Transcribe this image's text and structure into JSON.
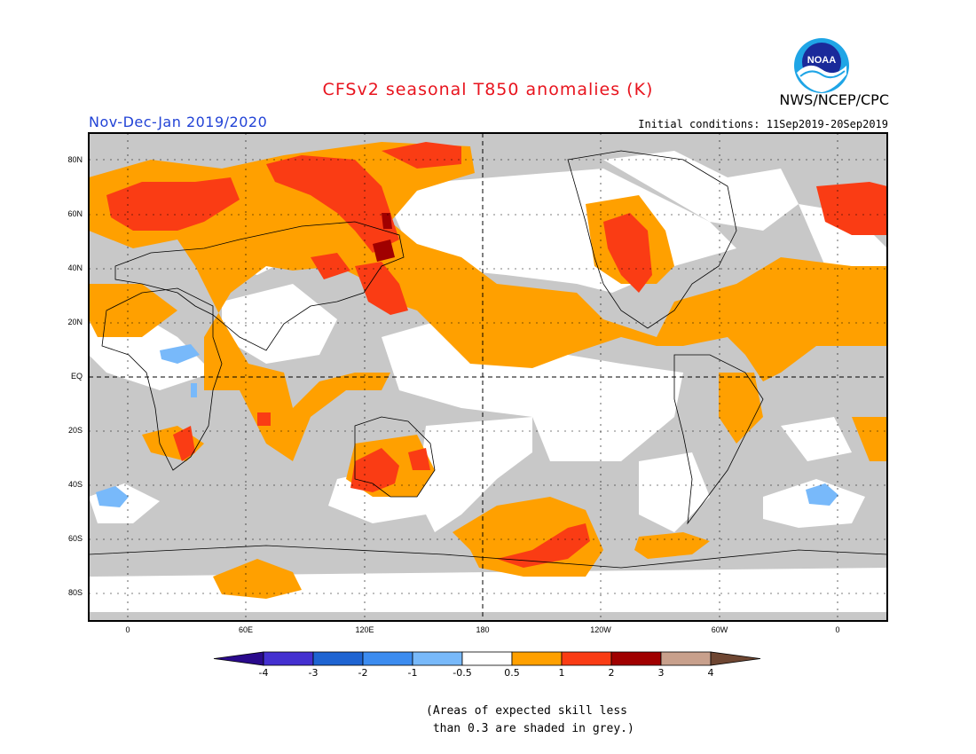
{
  "title": "CFSv2 seasonal T850 anomalies (K)",
  "season": "Nov-Dec-Jan 2019/2020",
  "initial_conditions": "Initial conditions: 11Sep2019-20Sep2019",
  "agency": "NWS/NCEP/CPC",
  "logo_text": "NOAA",
  "colors": {
    "title": "#e8141e",
    "season": "#2243d6",
    "grey": "#c8c8c8",
    "orange": "#ffa000",
    "red_orange": "#fa3c14",
    "dark_red": "#a00000",
    "light_blue": "#78b9fa"
  },
  "latitude_labels": [
    "80N",
    "60N",
    "40N",
    "20N",
    "EQ",
    "20S",
    "40S",
    "60S",
    "80S"
  ],
  "longitude_labels": [
    "0",
    "60E",
    "120E",
    "180",
    "120W",
    "60W",
    "0"
  ],
  "legend": {
    "colors": [
      "#2a0a8c",
      "#4430d0",
      "#1e64d2",
      "#3c8cf0",
      "#78b9fa",
      "#ffffff",
      "#ffa000",
      "#fa3c14",
      "#a00000",
      "#c8a08c",
      "#6e4632"
    ],
    "ticks": [
      "-4",
      "-3",
      "-2",
      "-1",
      "-0.5",
      "0.5",
      "1",
      "2",
      "3",
      "4"
    ]
  },
  "note_line1": "(Areas of expected skill less",
  "note_line2": " than 0.3 are shaded in grey.)"
}
